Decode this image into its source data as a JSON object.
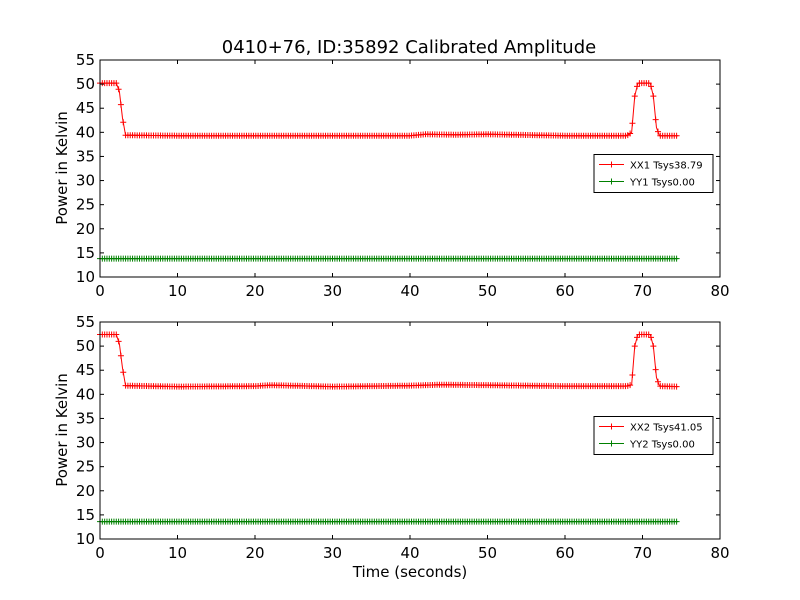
{
  "chart_data": {
    "title": "0410+76, ID:35892 Calibrated Amplitude",
    "xlabel": "Time (seconds)",
    "ylabel": "Power in Kelvin",
    "type": "line",
    "panels": [
      {
        "xlim": [
          0,
          80
        ],
        "ylim": [
          10,
          55
        ],
        "xticks": [
          "0",
          "10",
          "20",
          "30",
          "40",
          "50",
          "60",
          "70",
          "80"
        ],
        "yticks": [
          "10",
          "15",
          "20",
          "25",
          "30",
          "35",
          "40",
          "45",
          "50",
          "55"
        ],
        "legend_position": "right-center",
        "series": [
          {
            "name": "XX1 Tsys38.79",
            "color": "#ff0000",
            "marker": "plus",
            "points": [
              [
                0.0,
                50.2
              ],
              [
                2.1,
                50.2
              ],
              [
                2.5,
                48.5
              ],
              [
                2.9,
                43.0
              ],
              [
                3.3,
                39.4
              ],
              [
                10.0,
                39.3
              ],
              [
                20.0,
                39.3
              ],
              [
                30.0,
                39.3
              ],
              [
                40.0,
                39.3
              ],
              [
                42.0,
                39.6
              ],
              [
                46.0,
                39.5
              ],
              [
                50.0,
                39.6
              ],
              [
                60.0,
                39.3
              ],
              [
                68.0,
                39.3
              ],
              [
                68.6,
                40.0
              ],
              [
                69.0,
                47.5
              ],
              [
                69.4,
                50.2
              ],
              [
                71.0,
                50.2
              ],
              [
                71.4,
                47.5
              ],
              [
                71.8,
                41.0
              ],
              [
                72.2,
                39.3
              ],
              [
                74.6,
                39.3
              ]
            ]
          },
          {
            "name": "YY1 Tsys0.00",
            "color": "#008000",
            "marker": "plus",
            "points": [
              [
                0.0,
                13.8
              ],
              [
                74.6,
                13.8
              ]
            ]
          }
        ]
      },
      {
        "xlim": [
          0,
          80
        ],
        "ylim": [
          10,
          55
        ],
        "xticks": [
          "0",
          "10",
          "20",
          "30",
          "40",
          "50",
          "60",
          "70",
          "80"
        ],
        "yticks": [
          "10",
          "15",
          "20",
          "25",
          "30",
          "35",
          "40",
          "45",
          "50",
          "55"
        ],
        "legend_position": "right-center",
        "series": [
          {
            "name": "XX2 Tsys41.05",
            "color": "#ff0000",
            "marker": "plus",
            "points": [
              [
                0.0,
                52.4
              ],
              [
                2.1,
                52.4
              ],
              [
                2.5,
                50.5
              ],
              [
                2.9,
                45.5
              ],
              [
                3.3,
                41.8
              ],
              [
                10.0,
                41.6
              ],
              [
                20.0,
                41.7
              ],
              [
                22.0,
                41.9
              ],
              [
                30.0,
                41.6
              ],
              [
                40.0,
                41.8
              ],
              [
                44.0,
                42.0
              ],
              [
                50.0,
                41.9
              ],
              [
                60.0,
                41.7
              ],
              [
                68.0,
                41.7
              ],
              [
                68.6,
                42.0
              ],
              [
                69.0,
                50.0
              ],
              [
                69.4,
                52.4
              ],
              [
                71.0,
                52.4
              ],
              [
                71.4,
                50.0
              ],
              [
                71.8,
                43.5
              ],
              [
                72.2,
                41.7
              ],
              [
                74.6,
                41.6
              ]
            ]
          },
          {
            "name": "YY2 Tsys0.00",
            "color": "#008000",
            "marker": "plus",
            "points": [
              [
                0.0,
                13.6
              ],
              [
                74.6,
                13.6
              ]
            ]
          }
        ]
      }
    ]
  }
}
